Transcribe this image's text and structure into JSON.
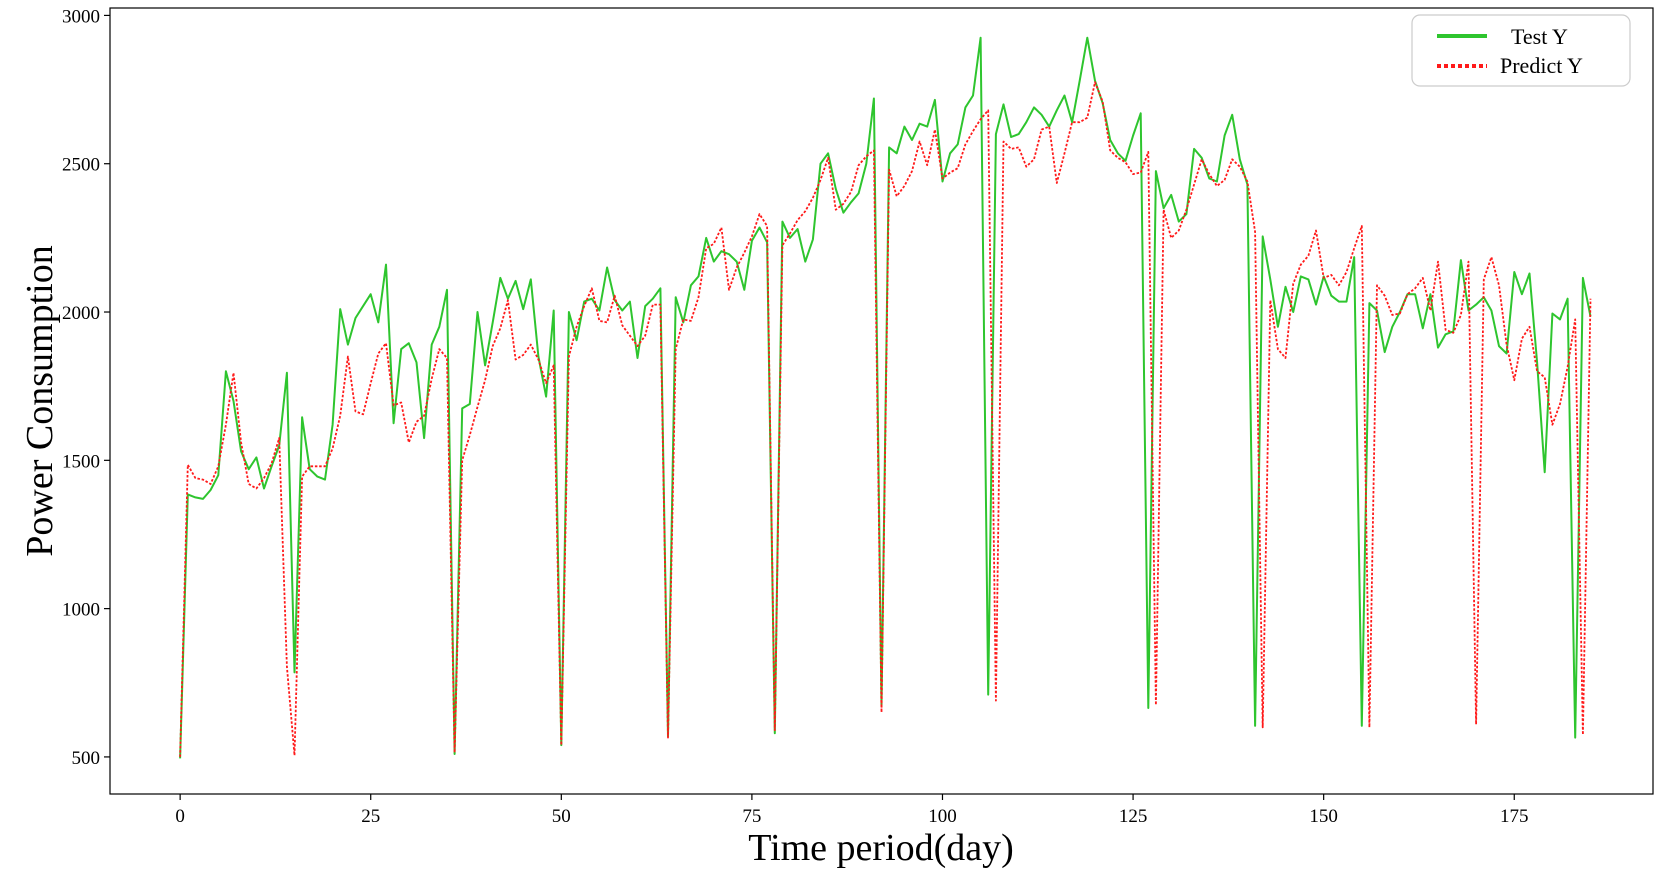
{
  "chart_data": {
    "type": "line",
    "title": "",
    "xlabel": "Time period(day)",
    "ylabel": "Power Consumption",
    "xlim": [
      -9.2,
      193.2
    ],
    "ylim": [
      375,
      3025
    ],
    "xticks": [
      0,
      25,
      50,
      75,
      100,
      125,
      150,
      175
    ],
    "yticks": [
      500,
      1000,
      1500,
      2000,
      2500,
      3000
    ],
    "grid": false,
    "legend_position": "top-right",
    "series": [
      {
        "name": "Test Y",
        "color": "#2ec52e",
        "style": "solid",
        "values": [
          495,
          1385,
          1375,
          1370,
          1400,
          1450,
          1800,
          1700,
          1530,
          1470,
          1510,
          1405,
          1480,
          1550,
          1795,
          785,
          1645,
          1470,
          1445,
          1435,
          1620,
          2010,
          1890,
          1980,
          2020,
          2060,
          1965,
          2160,
          1625,
          1875,
          1895,
          1830,
          1575,
          1890,
          1950,
          2075,
          510,
          1675,
          1690,
          2000,
          1820,
          1965,
          2115,
          2045,
          2105,
          2010,
          2110,
          1850,
          1715,
          2005,
          540,
          2000,
          1905,
          2035,
          2045,
          2005,
          2150,
          2040,
          2005,
          2035,
          1845,
          2020,
          2045,
          2080,
          570,
          2050,
          1965,
          2090,
          2120,
          2250,
          2170,
          2205,
          2195,
          2170,
          2075,
          2240,
          2285,
          2235,
          580,
          2305,
          2250,
          2280,
          2170,
          2245,
          2500,
          2535,
          2415,
          2335,
          2370,
          2400,
          2500,
          2720,
          670,
          2555,
          2535,
          2625,
          2580,
          2635,
          2625,
          2715,
          2440,
          2535,
          2565,
          2690,
          2730,
          2925,
          710,
          2600,
          2700,
          2590,
          2600,
          2640,
          2690,
          2665,
          2625,
          2680,
          2730,
          2640,
          2780,
          2925,
          2780,
          2705,
          2580,
          2535,
          2510,
          2595,
          2670,
          665,
          2475,
          2350,
          2395,
          2305,
          2330,
          2550,
          2520,
          2450,
          2440,
          2595,
          2665,
          2515,
          2430,
          605,
          2255,
          2110,
          1950,
          2085,
          2000,
          2120,
          2110,
          2025,
          2120,
          2055,
          2035,
          2035,
          2185,
          605,
          2030,
          2005,
          1865,
          1950,
          2000,
          2060,
          2060,
          1945,
          2060,
          1880,
          1925,
          1935,
          2175,
          2005,
          2025,
          2050,
          2005,
          1885,
          1860,
          2135,
          2060,
          2130,
          1830,
          1460,
          1995,
          1975,
          2045,
          565,
          2115,
          1985
        ],
        "visible_values": null
      },
      {
        "name": "Predict Y",
        "color": "#ff1a1a",
        "style": "dotted",
        "values": [
          500,
          1485,
          1440,
          1435,
          1420,
          1480,
          1620,
          1795,
          1560,
          1420,
          1405,
          1440,
          1490,
          1575,
          805,
          505,
          1445,
          1480,
          1480,
          1480,
          1540,
          1650,
          1850,
          1665,
          1655,
          1760,
          1860,
          1895,
          1685,
          1695,
          1560,
          1630,
          1650,
          1775,
          1875,
          1845,
          515,
          1500,
          1585,
          1680,
          1770,
          1885,
          1945,
          2040,
          1840,
          1855,
          1890,
          1840,
          1760,
          1820,
          540,
          1850,
          1950,
          2020,
          2080,
          1970,
          1965,
          2055,
          1955,
          1920,
          1885,
          1920,
          2025,
          2025,
          565,
          1875,
          1975,
          1970,
          2050,
          2215,
          2230,
          2285,
          2075,
          2150,
          2200,
          2255,
          2330,
          2290,
          590,
          2225,
          2265,
          2310,
          2340,
          2385,
          2445,
          2520,
          2345,
          2365,
          2405,
          2495,
          2525,
          2545,
          650,
          2480,
          2390,
          2425,
          2475,
          2575,
          2495,
          2615,
          2450,
          2470,
          2485,
          2565,
          2610,
          2650,
          2680,
          690,
          2575,
          2550,
          2555,
          2490,
          2515,
          2615,
          2625,
          2435,
          2535,
          2640,
          2640,
          2655,
          2775,
          2710,
          2545,
          2520,
          2505,
          2465,
          2470,
          2540,
          675,
          2345,
          2250,
          2275,
          2345,
          2430,
          2515,
          2465,
          2425,
          2445,
          2515,
          2490,
          2440,
          2270,
          600,
          2040,
          1875,
          1845,
          2095,
          2160,
          2190,
          2275,
          2115,
          2125,
          2090,
          2135,
          2215,
          2290,
          600,
          2090,
          2055,
          1990,
          1995,
          2060,
          2080,
          2115,
          2005,
          2170,
          1940,
          1930,
          1990,
          2170,
          610,
          2110,
          2185,
          2090,
          1890,
          1770,
          1910,
          1950,
          1800,
          1780,
          1620,
          1690,
          1815,
          1975,
          575,
          2045
        ]
      }
    ]
  }
}
